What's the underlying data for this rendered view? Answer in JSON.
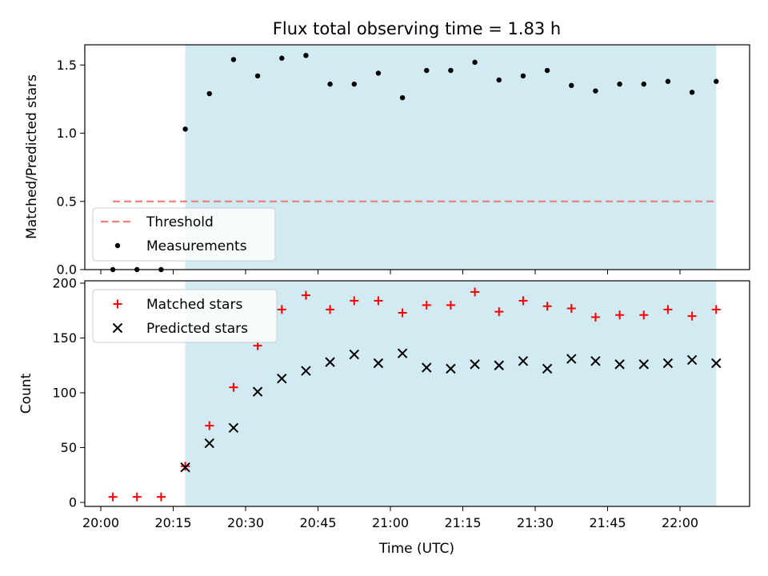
{
  "chart_data": [
    {
      "type": "scatter",
      "title": "Flux total observing time = 1.83 h",
      "xlabel": "",
      "ylabel": "Matched/Predicted stars",
      "ylim": [
        0,
        1.65
      ],
      "yticks": [
        "0.0",
        "0.5",
        "1.0",
        "1.5"
      ],
      "ytick_values": [
        0,
        0.5,
        1.0,
        1.5
      ],
      "shaded_span": {
        "start": "20:17.5",
        "end": "22:07.5",
        "color": "#add8e6"
      },
      "threshold": {
        "name": "Threshold",
        "value": 0.5,
        "x_start": "20:02.5",
        "x_end": "22:07.5",
        "color": "#f08080"
      },
      "legend": {
        "position": "lower-left",
        "entries": [
          "Threshold",
          "Measurements"
        ]
      },
      "series": [
        {
          "name": "Measurements",
          "marker": "dot",
          "color": "#000000",
          "x": [
            "20:02.5",
            "20:07.5",
            "20:12.5",
            "20:17.5",
            "20:22.5",
            "20:27.5",
            "20:32.5",
            "20:37.5",
            "20:42.5",
            "20:47.5",
            "20:52.5",
            "20:57.5",
            "21:02.5",
            "21:07.5",
            "21:12.5",
            "21:17.5",
            "21:22.5",
            "21:27.5",
            "21:32.5",
            "21:37.5",
            "21:42.5",
            "21:47.5",
            "21:52.5",
            "21:57.5",
            "22:02.5",
            "22:07.5"
          ],
          "y": [
            0.0,
            0.0,
            0.0,
            1.03,
            1.29,
            1.54,
            1.42,
            1.55,
            1.57,
            1.36,
            1.36,
            1.44,
            1.26,
            1.46,
            1.46,
            1.52,
            1.39,
            1.42,
            1.46,
            1.35,
            1.31,
            1.36,
            1.36,
            1.38,
            1.3,
            1.38
          ]
        }
      ]
    },
    {
      "type": "scatter",
      "title": "",
      "xlabel": "Time (UTC)",
      "ylabel": "Count",
      "ylim": [
        0,
        200
      ],
      "yticks": [
        "0",
        "50",
        "100",
        "150",
        "200"
      ],
      "ytick_values": [
        0,
        50,
        100,
        150,
        200
      ],
      "xticks": [
        "20:00",
        "20:15",
        "20:30",
        "20:45",
        "21:00",
        "21:15",
        "21:30",
        "21:45",
        "22:00"
      ],
      "shaded_span": {
        "start": "20:17.5",
        "end": "22:07.5",
        "color": "#add8e6"
      },
      "legend": {
        "position": "top-left",
        "entries": [
          "Matched stars",
          "Predicted stars"
        ]
      },
      "series": [
        {
          "name": "Matched stars",
          "marker": "plus",
          "color": "#ff0000",
          "x": [
            "20:02.5",
            "20:07.5",
            "20:12.5",
            "20:17.5",
            "20:22.5",
            "20:27.5",
            "20:32.5",
            "20:37.5",
            "20:42.5",
            "20:47.5",
            "20:52.5",
            "20:57.5",
            "21:02.5",
            "21:07.5",
            "21:12.5",
            "21:17.5",
            "21:22.5",
            "21:27.5",
            "21:32.5",
            "21:37.5",
            "21:42.5",
            "21:47.5",
            "21:52.5",
            "21:57.5",
            "22:02.5",
            "22:07.5"
          ],
          "y": [
            5,
            5,
            5,
            33,
            70,
            105,
            143,
            176,
            189,
            176,
            184,
            184,
            173,
            180,
            180,
            192,
            174,
            184,
            179,
            177,
            169,
            171,
            171,
            176,
            170,
            176
          ]
        },
        {
          "name": "Predicted stars",
          "marker": "x",
          "color": "#000000",
          "x": [
            "20:17.5",
            "20:22.5",
            "20:27.5",
            "20:32.5",
            "20:37.5",
            "20:42.5",
            "20:47.5",
            "20:52.5",
            "20:57.5",
            "21:02.5",
            "21:07.5",
            "21:12.5",
            "21:17.5",
            "21:22.5",
            "21:27.5",
            "21:32.5",
            "21:37.5",
            "21:42.5",
            "21:47.5",
            "21:52.5",
            "21:57.5",
            "22:02.5",
            "22:07.5"
          ],
          "y": [
            32,
            54,
            68,
            101,
            113,
            120,
            128,
            135,
            127,
            136,
            123,
            122,
            126,
            125,
            129,
            122,
            131,
            129,
            126,
            126,
            127,
            130,
            127
          ]
        }
      ]
    }
  ]
}
